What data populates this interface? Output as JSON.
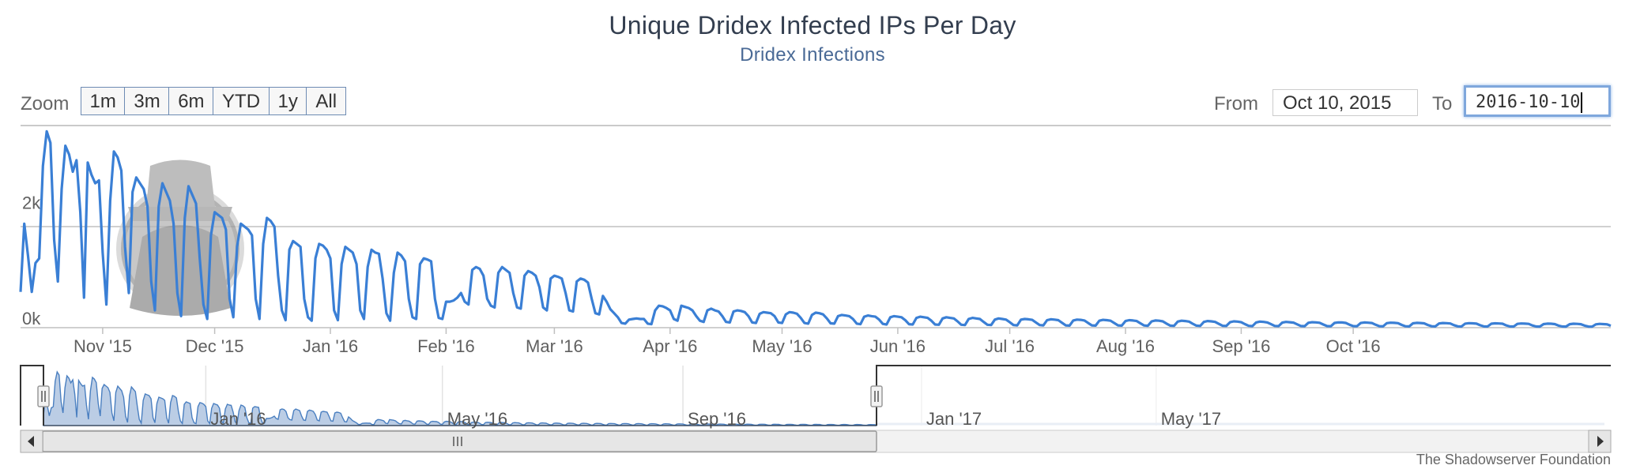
{
  "title": "Unique Dridex Infected IPs Per Day",
  "subtitle": "Dridex Infections",
  "range_selector": {
    "zoom_label": "Zoom",
    "buttons": [
      "1m",
      "3m",
      "6m",
      "YTD",
      "1y",
      "All"
    ],
    "from_label": "From",
    "from_value": "Oct 10, 2015",
    "to_label": "To",
    "to_value": "2016-10-10"
  },
  "credits": "The Shadowserver Foundation",
  "chart_data": {
    "type": "line",
    "title": "Unique Dridex Infected IPs Per Day",
    "subtitle": "Dridex Infections",
    "series": [
      {
        "name": "Dridex Infections",
        "color": "#3a7fd5",
        "x_start": "2015-10-10",
        "interval_days": 1,
        "values": [
          620,
          1800,
          1250,
          620,
          1120,
          1200,
          2800,
          3400,
          3200,
          1520,
          800,
          2400,
          3150,
          3000,
          2700,
          2900,
          2000,
          520,
          2860,
          2650,
          2500,
          2550,
          1300,
          400,
          2200,
          3050,
          2950,
          2720,
          1400,
          600,
          2350,
          2600,
          2500,
          2400,
          2100,
          800,
          300,
          2100,
          2500,
          2350,
          2200,
          1800,
          600,
          200,
          1900,
          2450,
          2300,
          2150,
          1200,
          400,
          150,
          1600,
          2000,
          1950,
          1900,
          1700,
          500,
          180,
          1400,
          1800,
          1750,
          1700,
          1600,
          500,
          150,
          1450,
          1900,
          1850,
          1750,
          900,
          300,
          130,
          1350,
          1500,
          1450,
          1400,
          500,
          180,
          120,
          1200,
          1450,
          1420,
          1350,
          1200,
          300,
          130,
          1100,
          1400,
          1350,
          1300,
          1100,
          300,
          150,
          1050,
          1350,
          1300,
          1280,
          850,
          250,
          120,
          950,
          1300,
          1250,
          1150,
          500,
          180,
          150,
          1100,
          1200,
          1180,
          1150,
          500,
          170,
          150,
          450,
          450,
          470,
          520,
          600,
          450,
          400,
          1000,
          1050,
          1020,
          900,
          500,
          380,
          350,
          950,
          1050,
          1000,
          950,
          600,
          350,
          330,
          900,
          980,
          950,
          900,
          700,
          350,
          300,
          850,
          900,
          880,
          850,
          600,
          300,
          280,
          800,
          850,
          830,
          780,
          500,
          250,
          230,
          550,
          450,
          320,
          250,
          180,
          80,
          70,
          140,
          150,
          160,
          150,
          150,
          70,
          60,
          300,
          380,
          370,
          340,
          300,
          150,
          120,
          380,
          360,
          340,
          300,
          200,
          120,
          100,
          300,
          330,
          300,
          280,
          200,
          100,
          90,
          280,
          300,
          290,
          270,
          200,
          90,
          80,
          240,
          270,
          260,
          250,
          200,
          90,
          80,
          230,
          270,
          260,
          240,
          170,
          80,
          70,
          220,
          260,
          250,
          230,
          160,
          75,
          70,
          200,
          220,
          210,
          200,
          150,
          70,
          60,
          190,
          210,
          200,
          190,
          140,
          65,
          55,
          180,
          200,
          190,
          180,
          130,
          60,
          55,
          170,
          190,
          180,
          170,
          120,
          55,
          50,
          160,
          180,
          170,
          160,
          110,
          50,
          45,
          150,
          170,
          160,
          150,
          100,
          50,
          45,
          140,
          160,
          150,
          140,
          95,
          45,
          40,
          140,
          150,
          145,
          135,
          90,
          45,
          40,
          130,
          145,
          140,
          130,
          85,
          40,
          35,
          125,
          140,
          135,
          125,
          80,
          40,
          35,
          120,
          135,
          130,
          120,
          80,
          40,
          35,
          115,
          130,
          125,
          115,
          75,
          38,
          33,
          110,
          125,
          120,
          110,
          70,
          36,
          32,
          105,
          120,
          115,
          105,
          68,
          35,
          30,
          100,
          115,
          110,
          100,
          65,
          33,
          30,
          95,
          110,
          105,
          95,
          62,
          32,
          28,
          90,
          105,
          100,
          90,
          60,
          30,
          27,
          88,
          100,
          95,
          88,
          58,
          29,
          26,
          85,
          95,
          92,
          85,
          55,
          28,
          25,
          82,
          92,
          90,
          82,
          52,
          27,
          24,
          80,
          90,
          86,
          80,
          50,
          26,
          23,
          78,
          86,
          84,
          78,
          48,
          25,
          22,
          75,
          84,
          80,
          75,
          46,
          24,
          22,
          72,
          80,
          78,
          72,
          44,
          23,
          21,
          70,
          78,
          75,
          70,
          42,
          22,
          20,
          68,
          75,
          72,
          68,
          40,
          21,
          20,
          65,
          72,
          70,
          65,
          38,
          20,
          19,
          62,
          70,
          68,
          62,
          36,
          20,
          19,
          60,
          68,
          65,
          60,
          35,
          19,
          18,
          58,
          65,
          62,
          58,
          33
        ]
      }
    ],
    "ylim": [
      0,
      3500
    ],
    "y_ticks": [
      "0k",
      "2k"
    ],
    "x_ticks": [
      "Nov '15",
      "Dec '15",
      "Jan '16",
      "Feb '16",
      "Mar '16",
      "Apr '16",
      "May '16",
      "Jun '16",
      "Jul '16",
      "Aug '16",
      "Sep '16",
      "Oct '16"
    ],
    "grid": true,
    "navigator": {
      "x_ticks": [
        "Jan '16",
        "May '16",
        "Sep '16",
        "Jan '17",
        "May '17"
      ],
      "selected_range": [
        "2015-10-10",
        "2016-10-10"
      ]
    }
  }
}
